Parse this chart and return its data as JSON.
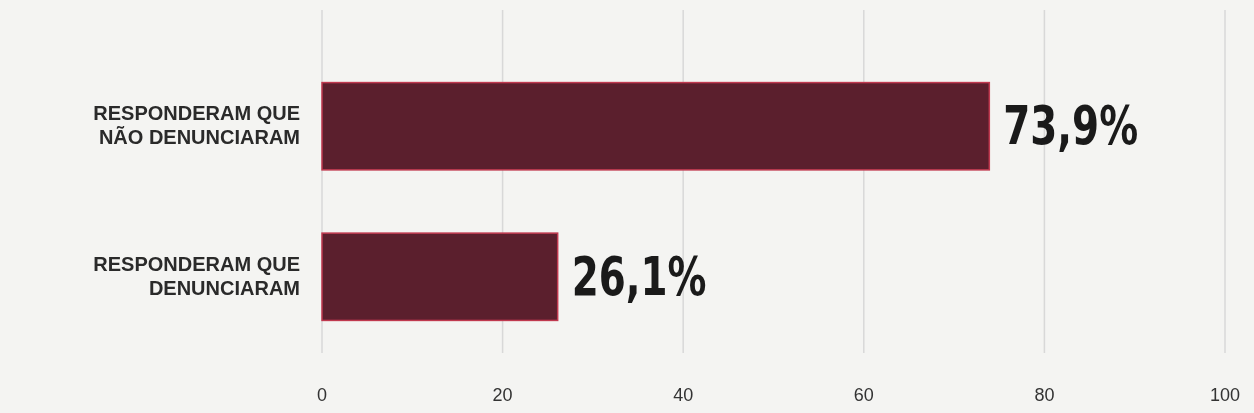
{
  "chart_data": {
    "type": "bar",
    "orientation": "horizontal",
    "categories": [
      "RESPONDERAM QUE NÃO DENUNCIARAM",
      "RESPONDERAM QUE DENUNCIARAM"
    ],
    "values": [
      73.9,
      26.1
    ],
    "value_labels": [
      "73,9%",
      "26,1%"
    ],
    "color": "#5b1f2d",
    "xlim": [
      0,
      100
    ],
    "xticks": [
      0,
      20,
      40,
      60,
      80,
      100
    ],
    "grid": "x"
  }
}
